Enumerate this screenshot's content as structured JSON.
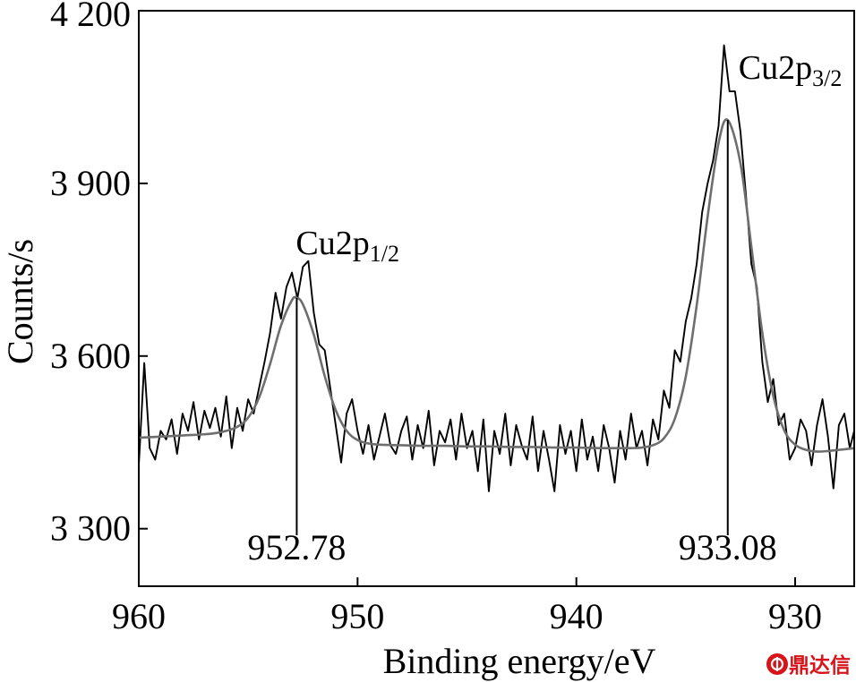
{
  "chart_data": {
    "type": "line",
    "xlabel": "Binding energy/eV",
    "ylabel": "Counts/s",
    "xlim": [
      960,
      927.3
    ],
    "ylim": [
      3200,
      4200
    ],
    "xticks": [
      960,
      950,
      940,
      930
    ],
    "xticklabels": [
      "960",
      "950",
      "940",
      "930"
    ],
    "yticks": [
      3300,
      3600,
      3900,
      4200
    ],
    "yticklabels": [
      "3 300",
      "3 600",
      "3 900",
      "4 200"
    ],
    "grid": false,
    "series": [
      {
        "color": "#000000",
        "x": [
          960,
          959.75,
          959.5,
          959.25,
          959,
          958.75,
          958.5,
          958.25,
          958,
          957.75,
          957.5,
          957.25,
          957,
          956.75,
          956.5,
          956.25,
          956,
          955.75,
          955.5,
          955.25,
          955,
          954.75,
          954.5,
          954.25,
          954,
          953.75,
          953.5,
          953.25,
          953,
          952.75,
          952.5,
          952.25,
          952,
          951.75,
          951.5,
          951.25,
          951,
          950.75,
          950.5,
          950.25,
          950,
          949.75,
          949.5,
          949.25,
          949,
          948.75,
          948.5,
          948.25,
          948,
          947.75,
          947.5,
          947.25,
          947,
          946.75,
          946.5,
          946.25,
          946,
          945.75,
          945.5,
          945.25,
          945,
          944.75,
          944.5,
          944.25,
          944,
          943.75,
          943.5,
          943.25,
          943,
          942.75,
          942.5,
          942.25,
          942,
          941.75,
          941.5,
          941.25,
          941,
          940.75,
          940.5,
          940.25,
          940,
          939.75,
          939.5,
          939.25,
          939,
          938.75,
          938.5,
          938.25,
          938,
          937.75,
          937.5,
          937.25,
          937,
          936.75,
          936.5,
          936.25,
          936,
          935.75,
          935.5,
          935.25,
          935,
          934.75,
          934.5,
          934.25,
          934,
          933.75,
          933.5,
          933.25,
          933,
          932.75,
          932.5,
          932.25,
          932,
          931.75,
          931.5,
          931.25,
          931,
          930.75,
          930.5,
          930.25,
          930,
          929.75,
          929.5,
          929.25,
          929,
          928.75,
          928.5,
          928.25,
          928,
          927.75,
          927.5,
          927.3
        ],
        "y": [
          3410,
          3588,
          3440,
          3420,
          3470,
          3455,
          3490,
          3430,
          3500,
          3470,
          3520,
          3455,
          3505,
          3475,
          3510,
          3460,
          3530,
          3440,
          3510,
          3470,
          3525,
          3500,
          3545,
          3590,
          3640,
          3710,
          3665,
          3720,
          3745,
          3700,
          3755,
          3765,
          3675,
          3620,
          3610,
          3545,
          3480,
          3415,
          3500,
          3525,
          3470,
          3430,
          3480,
          3420,
          3460,
          3500,
          3445,
          3430,
          3470,
          3495,
          3420,
          3480,
          3440,
          3505,
          3410,
          3470,
          3450,
          3490,
          3420,
          3500,
          3440,
          3470,
          3400,
          3490,
          3365,
          3470,
          3430,
          3500,
          3410,
          3480,
          3445,
          3420,
          3495,
          3400,
          3470,
          3420,
          3365,
          3480,
          3430,
          3470,
          3400,
          3490,
          3420,
          3460,
          3400,
          3480,
          3440,
          3380,
          3470,
          3420,
          3500,
          3440,
          3470,
          3410,
          3490,
          3455,
          3540,
          3510,
          3610,
          3590,
          3660,
          3700,
          3760,
          3850,
          3900,
          3940,
          4000,
          4140,
          4060,
          4060,
          3990,
          3880,
          3760,
          3720,
          3590,
          3520,
          3560,
          3480,
          3500,
          3420,
          3440,
          3490,
          3470,
          3410,
          3480,
          3525,
          3460,
          3370,
          3480,
          3500,
          3440,
          3470
        ]
      },
      {
        "color": "#6e6e6e",
        "x": [
          960,
          959,
          958,
          957,
          956.5,
          956,
          955.5,
          955,
          954.5,
          954,
          953.5,
          953,
          952.78,
          952.5,
          952,
          951.5,
          951,
          950.5,
          950,
          949.5,
          949,
          948,
          947,
          946,
          945,
          944,
          943,
          942,
          941,
          940,
          939,
          938,
          937.5,
          937,
          936.5,
          936,
          935.5,
          935,
          934.5,
          934,
          933.5,
          933.08,
          932.5,
          932,
          931.5,
          931,
          930.5,
          930,
          929.5,
          929,
          928.5,
          928,
          927.5,
          927.3
        ],
        "y": [
          3458,
          3460,
          3462,
          3464,
          3466,
          3470,
          3477,
          3493,
          3528,
          3586,
          3653,
          3697,
          3701,
          3690,
          3637,
          3565,
          3506,
          3470,
          3454,
          3448,
          3446,
          3445,
          3444,
          3444,
          3443,
          3443,
          3442,
          3442,
          3441,
          3441,
          3440,
          3440,
          3440,
          3441,
          3445,
          3457,
          3491,
          3564,
          3688,
          3842,
          3970,
          4010,
          3935,
          3790,
          3640,
          3531,
          3471,
          3446,
          3437,
          3434,
          3435,
          3437,
          3439,
          3440
        ]
      }
    ],
    "peaks": [
      {
        "energy": 952.78,
        "label": "952.78",
        "annotation": "Cu2p",
        "annotation_sub": "1/2"
      },
      {
        "energy": 933.08,
        "label": "933.08",
        "annotation": "Cu2p",
        "annotation_sub": "3/2"
      }
    ]
  },
  "watermark": {
    "text": "鼎达信",
    "color": "#d7141a"
  }
}
